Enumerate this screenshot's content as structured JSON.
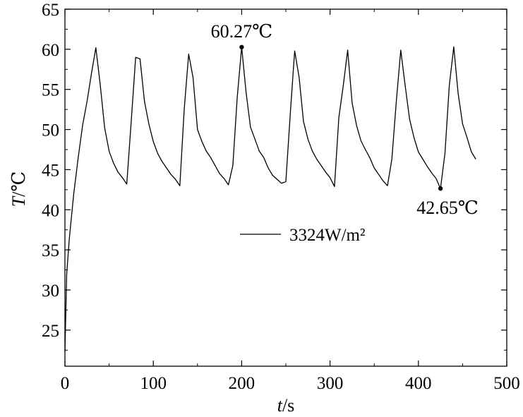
{
  "chart_data": {
    "type": "line",
    "xlabel_italic": "t",
    "xlabel_unit": "/s",
    "ylabel_italic": "T",
    "ylabel_unit": "/℃",
    "xlim": [
      0,
      500
    ],
    "ylim": [
      20.5,
      65
    ],
    "xticks": [
      0,
      100,
      200,
      300,
      400,
      500
    ],
    "yticks": [
      25,
      30,
      35,
      40,
      45,
      50,
      55,
      60,
      65
    ],
    "grid": false,
    "legend_position": "center",
    "series": [
      {
        "name": "3324W/m²",
        "color": "#000000",
        "x": [
          0,
          2,
          5,
          10,
          15,
          20,
          25,
          30,
          35,
          40,
          45,
          50,
          55,
          60,
          65,
          70,
          75,
          80,
          85,
          90,
          95,
          100,
          105,
          110,
          115,
          120,
          125,
          130,
          135,
          140,
          145,
          150,
          155,
          160,
          165,
          170,
          175,
          180,
          185,
          190,
          195,
          200,
          205,
          210,
          215,
          220,
          225,
          230,
          235,
          240,
          245,
          250,
          255,
          260,
          265,
          270,
          275,
          280,
          285,
          290,
          295,
          300,
          305,
          310,
          315,
          320,
          325,
          330,
          335,
          340,
          345,
          350,
          355,
          360,
          365,
          370,
          375,
          380,
          385,
          390,
          395,
          400,
          405,
          410,
          415,
          420,
          425,
          430,
          435,
          440,
          445,
          450,
          455,
          460,
          465
        ],
        "y": [
          22.3,
          32.0,
          36.5,
          42.0,
          46.5,
          50.5,
          53.5,
          57.0,
          60.2,
          55.5,
          50.2,
          47.3,
          45.8,
          44.7,
          44.0,
          43.2,
          51.0,
          59.0,
          58.8,
          53.5,
          50.7,
          48.5,
          47.0,
          46.0,
          45.2,
          44.4,
          43.8,
          43.0,
          52.5,
          59.4,
          56.5,
          50.0,
          48.5,
          47.3,
          46.5,
          45.5,
          44.5,
          43.9,
          43.1,
          45.5,
          54.0,
          60.27,
          54.6,
          50.3,
          48.8,
          47.3,
          46.5,
          45.2,
          44.3,
          43.8,
          43.3,
          43.5,
          52.0,
          59.8,
          56.5,
          51.0,
          48.8,
          47.3,
          46.3,
          45.5,
          44.7,
          44.0,
          42.9,
          51.5,
          55.5,
          59.9,
          53.3,
          50.5,
          48.6,
          47.5,
          46.5,
          45.2,
          44.4,
          43.6,
          43.0,
          46.3,
          53.5,
          59.9,
          55.5,
          51.3,
          49.0,
          47.2,
          46.3,
          45.4,
          44.6,
          43.9,
          42.65,
          47.0,
          55.5,
          60.3,
          54.5,
          50.7,
          49.0,
          47.2,
          46.3
        ]
      }
    ],
    "annotations": [
      {
        "text": "60.27℃",
        "x": 200,
        "y": 60.27
      },
      {
        "text": "42.65℃",
        "x": 425,
        "y": 42.65
      }
    ]
  }
}
